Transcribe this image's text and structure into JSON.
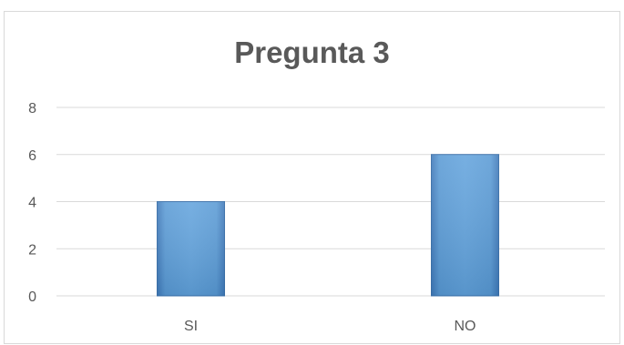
{
  "chart_data": {
    "type": "bar",
    "title": "Pregunta 3",
    "categories": [
      "SI",
      "NO"
    ],
    "values": [
      4,
      6
    ],
    "xlabel": "",
    "ylabel": "",
    "ylim": [
      0,
      8
    ],
    "yticks": [
      0,
      2,
      4,
      6,
      8
    ],
    "grid": true,
    "legend": "none",
    "bar_color": "#5b9bd5"
  }
}
